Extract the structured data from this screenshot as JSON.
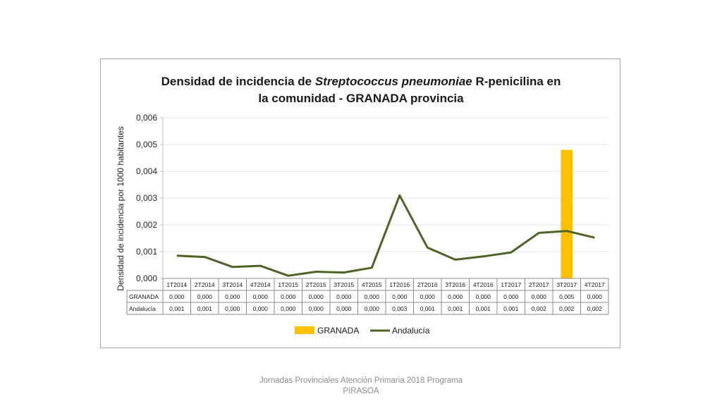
{
  "chart_data": {
    "type": "bar",
    "title_lines": [
      [
        "Densidad de incidencia de ",
        "Streptococcus pneumoniae",
        " R-penicilina en"
      ],
      [
        "la comunidad - GRANADA provincia"
      ]
    ],
    "ylabel": "Densidad de incidencia por 1000 habitantes",
    "ylim": [
      0,
      0.006
    ],
    "yticks": [
      "0,000",
      "0,001",
      "0,002",
      "0,003",
      "0,004",
      "0,005",
      "0,006"
    ],
    "categories": [
      "1T2014",
      "2T2014",
      "3T2014",
      "4T2014",
      "1T2015",
      "2T2015",
      "3T2015",
      "4T2015",
      "1T2016",
      "2T2016",
      "3T2016",
      "4T2016",
      "1T2017",
      "2T2017",
      "3T2017",
      "4T2017"
    ],
    "series": [
      {
        "name": "GRANADA",
        "kind": "bar",
        "color": "#ffc000",
        "values": [
          0,
          0,
          0,
          0,
          0,
          0,
          0,
          0,
          0,
          0,
          0,
          0,
          0,
          0,
          0.0048,
          0
        ],
        "labels": [
          "0,000",
          "0,000",
          "0,000",
          "0,000",
          "0,000",
          "0,000",
          "0,000",
          "0,000",
          "0,000",
          "0,000",
          "0,000",
          "0,000",
          "0,000",
          "0,000",
          "0,005",
          "0,000"
        ]
      },
      {
        "name": "Andalucía",
        "kind": "line",
        "color": "#4f6228",
        "values": [
          0.00085,
          0.0008,
          0.00043,
          0.00047,
          0.0001,
          0.00025,
          0.00022,
          0.0004,
          0.0031,
          0.00115,
          0.0007,
          0.00082,
          0.00097,
          0.0017,
          0.00177,
          0.00152
        ],
        "labels": [
          "0,001",
          "0,001",
          "0,000",
          "0,000",
          "0,000",
          "0,000",
          "0,000",
          "0,000",
          "0,003",
          "0,001",
          "0,001",
          "0,001",
          "0,001",
          "0,002",
          "0,002",
          "0,002"
        ]
      }
    ],
    "grid": true,
    "legend_position": "bottom"
  },
  "footer": {
    "line1": "Jornadas Provinciales Atención Primaria 2018 Programa",
    "line2": "PIRASOA"
  }
}
